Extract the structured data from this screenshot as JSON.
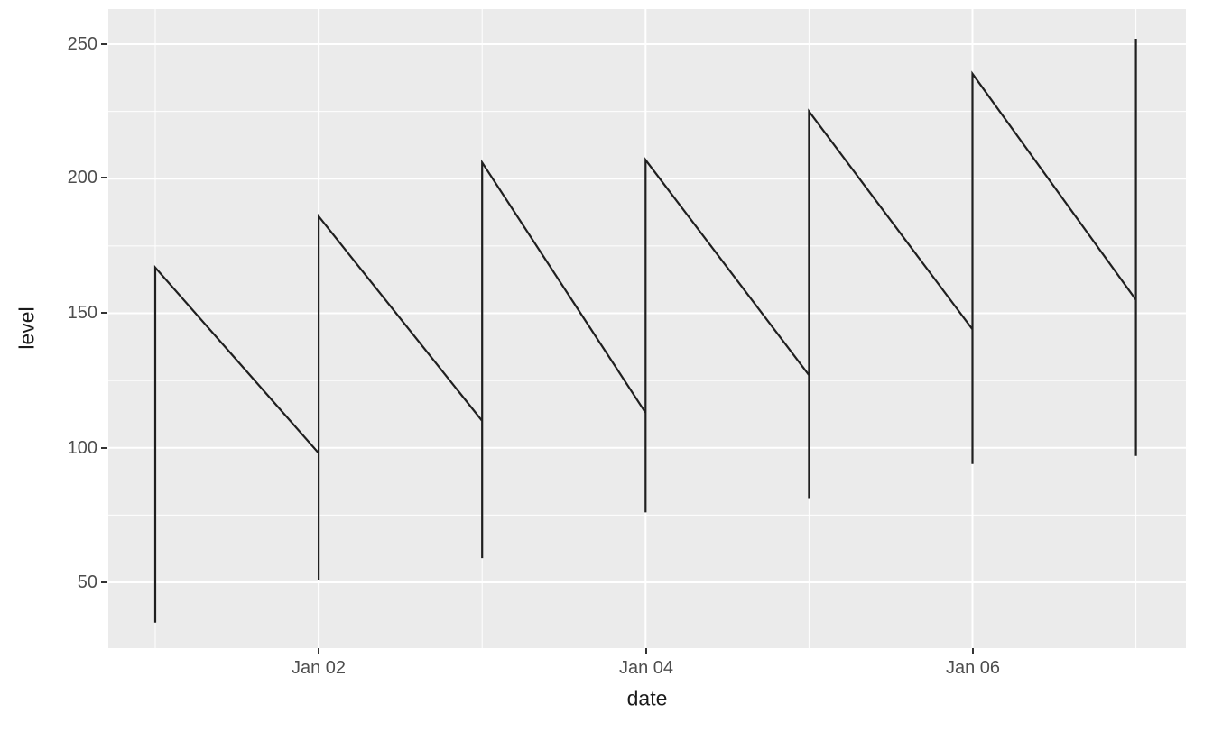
{
  "chart_data": {
    "type": "line",
    "title": "",
    "xlabel": "date",
    "ylabel": "level",
    "x_tick_labels": [
      "Jan 02",
      "Jan 04",
      "Jan 06"
    ],
    "x_major_days": [
      2,
      4,
      6
    ],
    "x_minor_days": [
      1,
      3,
      5,
      7
    ],
    "y_major_ticks": [
      50,
      100,
      150,
      200,
      250
    ],
    "y_minor_ticks": [
      75,
      125,
      175,
      225
    ],
    "x_domain": [
      "Jan 01",
      "Jan 07"
    ],
    "ylim": [
      35,
      252
    ],
    "grid": "on",
    "legend": "none",
    "panel_bg": "#ebebeb",
    "grid_color": "#ffffff",
    "line_color": "#1f1f1f",
    "series": [
      {
        "name": "level",
        "comment": "points as [day_number (1 = Jan 01), level]; repeated day values form the vertical drop/spike segments",
        "points": [
          [
            1,
            35
          ],
          [
            1,
            167
          ],
          [
            2,
            98
          ],
          [
            2,
            51
          ],
          [
            2,
            186
          ],
          [
            3,
            110
          ],
          [
            3,
            59
          ],
          [
            3,
            206
          ],
          [
            4,
            113
          ],
          [
            4,
            76
          ],
          [
            4,
            207
          ],
          [
            5,
            127
          ],
          [
            5,
            81
          ],
          [
            5,
            225
          ],
          [
            6,
            144
          ],
          [
            6,
            94
          ],
          [
            6,
            239
          ],
          [
            7,
            155
          ],
          [
            7,
            97
          ],
          [
            7,
            252
          ]
        ]
      }
    ]
  },
  "ui": {
    "y_ticks": [
      "250",
      "200",
      "150",
      "100",
      "50"
    ],
    "x_ticks": [
      "Jan 02",
      "Jan 04",
      "Jan 06"
    ],
    "x_axis_title": "date",
    "y_axis_title": "level"
  }
}
